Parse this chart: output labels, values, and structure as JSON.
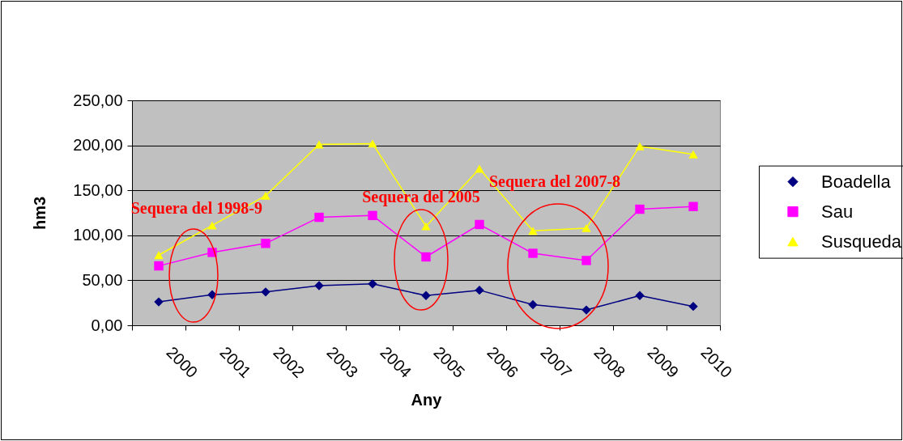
{
  "chart_data": {
    "type": "line",
    "xlabel": "Any",
    "ylabel": "hm3",
    "categories": [
      "2000",
      "2001",
      "2002",
      "2003",
      "2004",
      "2005",
      "2006",
      "2007",
      "2008",
      "2009",
      "2010"
    ],
    "series": [
      {
        "name": "Boadella",
        "color": "#000080",
        "marker": "diamond",
        "values": [
          26,
          34,
          37,
          44,
          46,
          33,
          39,
          23,
          17,
          33,
          21
        ]
      },
      {
        "name": "Sau",
        "color": "#ff00ff",
        "marker": "square",
        "values": [
          66,
          81,
          91,
          120,
          122,
          76,
          112,
          80,
          72,
          129,
          132
        ]
      },
      {
        "name": "Susqueda",
        "color": "#ffff00",
        "marker": "triangle",
        "values": [
          78,
          111,
          144,
          201,
          202,
          110,
          174,
          105,
          108,
          199,
          190
        ]
      }
    ],
    "ylim": [
      0,
      250
    ],
    "yticks": [
      {
        "value": 0,
        "label": "0,00"
      },
      {
        "value": 50,
        "label": "50,00"
      },
      {
        "value": 100,
        "label": "100,00"
      },
      {
        "value": 150,
        "label": "150,00"
      },
      {
        "value": 200,
        "label": "200,00"
      },
      {
        "value": 250,
        "label": "250,00"
      }
    ],
    "grid": "y",
    "legend": "right",
    "line_style": "solid",
    "annotations": [
      "Sequera del 1998-9",
      "Sequera del 2005",
      "Sequera del 2007-8"
    ]
  }
}
